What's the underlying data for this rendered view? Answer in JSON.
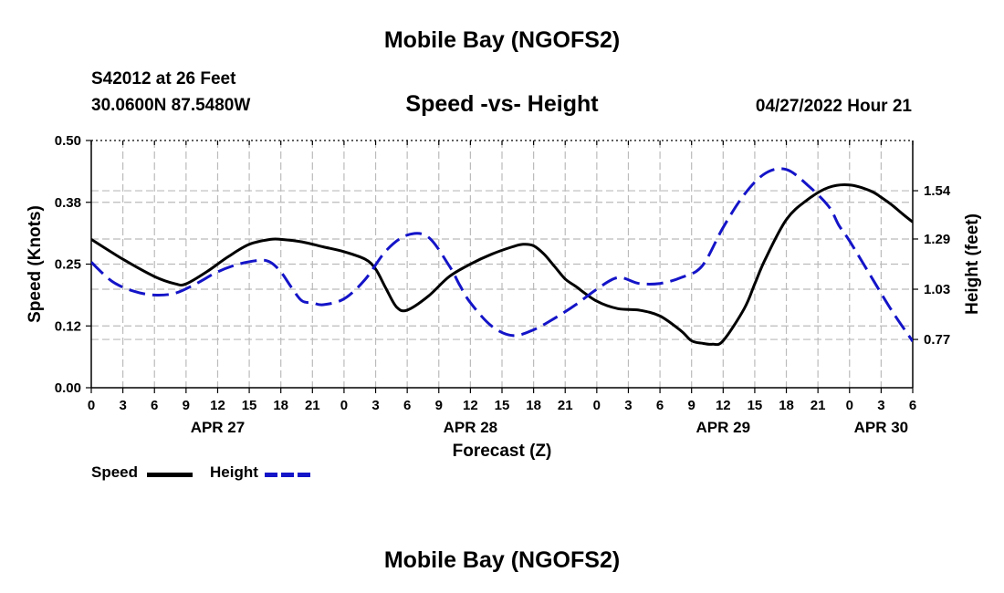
{
  "header": {
    "title": "Mobile Bay (NGOFS2)",
    "station": "S42012 at 26 Feet",
    "coords": "30.0600N  87.5480W",
    "subtitle": "Speed -vs- Height",
    "datetime": "04/27/2022 Hour 21"
  },
  "footer": {
    "title": "Mobile Bay (NGOFS2)"
  },
  "legend": [
    {
      "label": "Speed",
      "color": "#000000",
      "dash": "solid"
    },
    {
      "label": "Height",
      "color": "#1414c8",
      "dash": "dashed"
    }
  ],
  "chart_data": {
    "type": "line",
    "xlabel": "Forecast (Z)",
    "ylabel_left": "Speed (Knots)",
    "ylabel_right": "Height (feet)",
    "xlim": [
      0,
      78
    ],
    "ylim_left": [
      0,
      0.5
    ],
    "ylim_right": [
      0.52,
      1.8
    ],
    "x_tick_labels": [
      "0",
      "3",
      "6",
      "9",
      "12",
      "15",
      "18",
      "21",
      "0",
      "3",
      "6",
      "9",
      "12",
      "15",
      "18",
      "21",
      "0",
      "3",
      "6",
      "9",
      "12",
      "15",
      "18",
      "21",
      "0",
      "3",
      "6"
    ],
    "y_left_ticks": [
      {
        "value": 0.0,
        "label": "0.00"
      },
      {
        "value": 0.125,
        "label": "0.12"
      },
      {
        "value": 0.25,
        "label": "0.25"
      },
      {
        "value": 0.375,
        "label": "0.38"
      },
      {
        "value": 0.5,
        "label": "0.50"
      }
    ],
    "y_right_ticks": [
      {
        "value": 0.77,
        "label": "0.77"
      },
      {
        "value": 1.03,
        "label": "1.03"
      },
      {
        "value": 1.29,
        "label": "1.29"
      },
      {
        "value": 1.54,
        "label": "1.54"
      }
    ],
    "date_labels": [
      {
        "x": 12,
        "label": "APR 27"
      },
      {
        "x": 36,
        "label": "APR 28"
      },
      {
        "x": 60,
        "label": "APR 29"
      },
      {
        "x": 75,
        "label": "APR 30"
      }
    ],
    "series": [
      {
        "name": "Speed",
        "axis": "left",
        "x": [
          0,
          3,
          6,
          8,
          9,
          11,
          13,
          15,
          17,
          18,
          20,
          22,
          24,
          26,
          27,
          28,
          29,
          30,
          32,
          34,
          36,
          38,
          40,
          41,
          42,
          43,
          44,
          45,
          46,
          48,
          50,
          52,
          54,
          56,
          57,
          58,
          59,
          60,
          62,
          63,
          64,
          66,
          68,
          70,
          72,
          74,
          75,
          76,
          77,
          78
        ],
        "values": [
          0.3,
          0.26,
          0.225,
          0.21,
          0.21,
          0.235,
          0.265,
          0.29,
          0.3,
          0.3,
          0.295,
          0.285,
          0.275,
          0.26,
          0.24,
          0.2,
          0.163,
          0.157,
          0.185,
          0.225,
          0.25,
          0.27,
          0.285,
          0.29,
          0.287,
          0.27,
          0.245,
          0.22,
          0.205,
          0.175,
          0.16,
          0.157,
          0.145,
          0.115,
          0.095,
          0.09,
          0.088,
          0.095,
          0.16,
          0.21,
          0.26,
          0.34,
          0.38,
          0.405,
          0.41,
          0.398,
          0.385,
          0.37,
          0.352,
          0.335
        ]
      },
      {
        "name": "Height",
        "axis": "right",
        "x": [
          0,
          2,
          4,
          6,
          8,
          10,
          12,
          14,
          16,
          17,
          18,
          19,
          20,
          21,
          22,
          24,
          26,
          28,
          30,
          32,
          34,
          35,
          36,
          38,
          40,
          42,
          44,
          46,
          48,
          50,
          52,
          54,
          56,
          58,
          60,
          62,
          64,
          66,
          68,
          70,
          71,
          72,
          74,
          76,
          78
        ],
        "values": [
          1.17,
          1.07,
          1.02,
          1.0,
          1.01,
          1.06,
          1.12,
          1.16,
          1.18,
          1.17,
          1.12,
          1.04,
          0.97,
          0.96,
          0.95,
          0.98,
          1.08,
          1.23,
          1.31,
          1.3,
          1.15,
          1.05,
          0.96,
          0.84,
          0.79,
          0.82,
          0.88,
          0.95,
          1.03,
          1.09,
          1.06,
          1.06,
          1.09,
          1.15,
          1.35,
          1.52,
          1.63,
          1.65,
          1.57,
          1.46,
          1.36,
          1.28,
          1.1,
          0.92,
          0.76
        ]
      }
    ]
  }
}
